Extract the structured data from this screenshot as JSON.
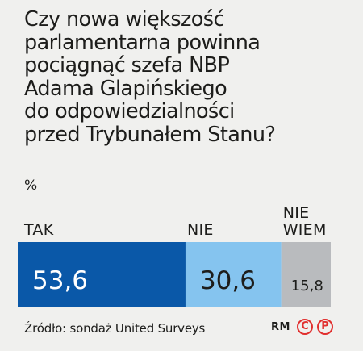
{
  "chart_data": {
    "type": "bar",
    "orientation": "horizontal-stacked",
    "title_lines": [
      "Czy nowa większość",
      "parlamentarna powinna",
      "pociągnąć szefa NBP",
      "Adama Glapińskiego",
      "do odpowiedzialności",
      "przed Trybunałem Stanu?"
    ],
    "unit": "%",
    "categories": [
      "TAK",
      "NIE",
      "NIE WIEM"
    ],
    "category_label_lines": [
      [
        "TAK"
      ],
      [
        "NIE"
      ],
      [
        "NIE",
        "WIEM"
      ]
    ],
    "values": [
      53.6,
      30.6,
      15.8
    ],
    "value_labels": [
      "53,6",
      "30,6",
      "15,8"
    ],
    "colors": [
      "#0a58a8",
      "#85c4ef",
      "#b9bbbe"
    ],
    "label_colors": [
      "#ffffff",
      "#1d1d1b",
      "#1d1d1b"
    ],
    "total": 100
  },
  "footer": {
    "source": "Źródło: sondaż United Surveys",
    "credit": "RM",
    "badges": [
      "C",
      "P"
    ]
  }
}
